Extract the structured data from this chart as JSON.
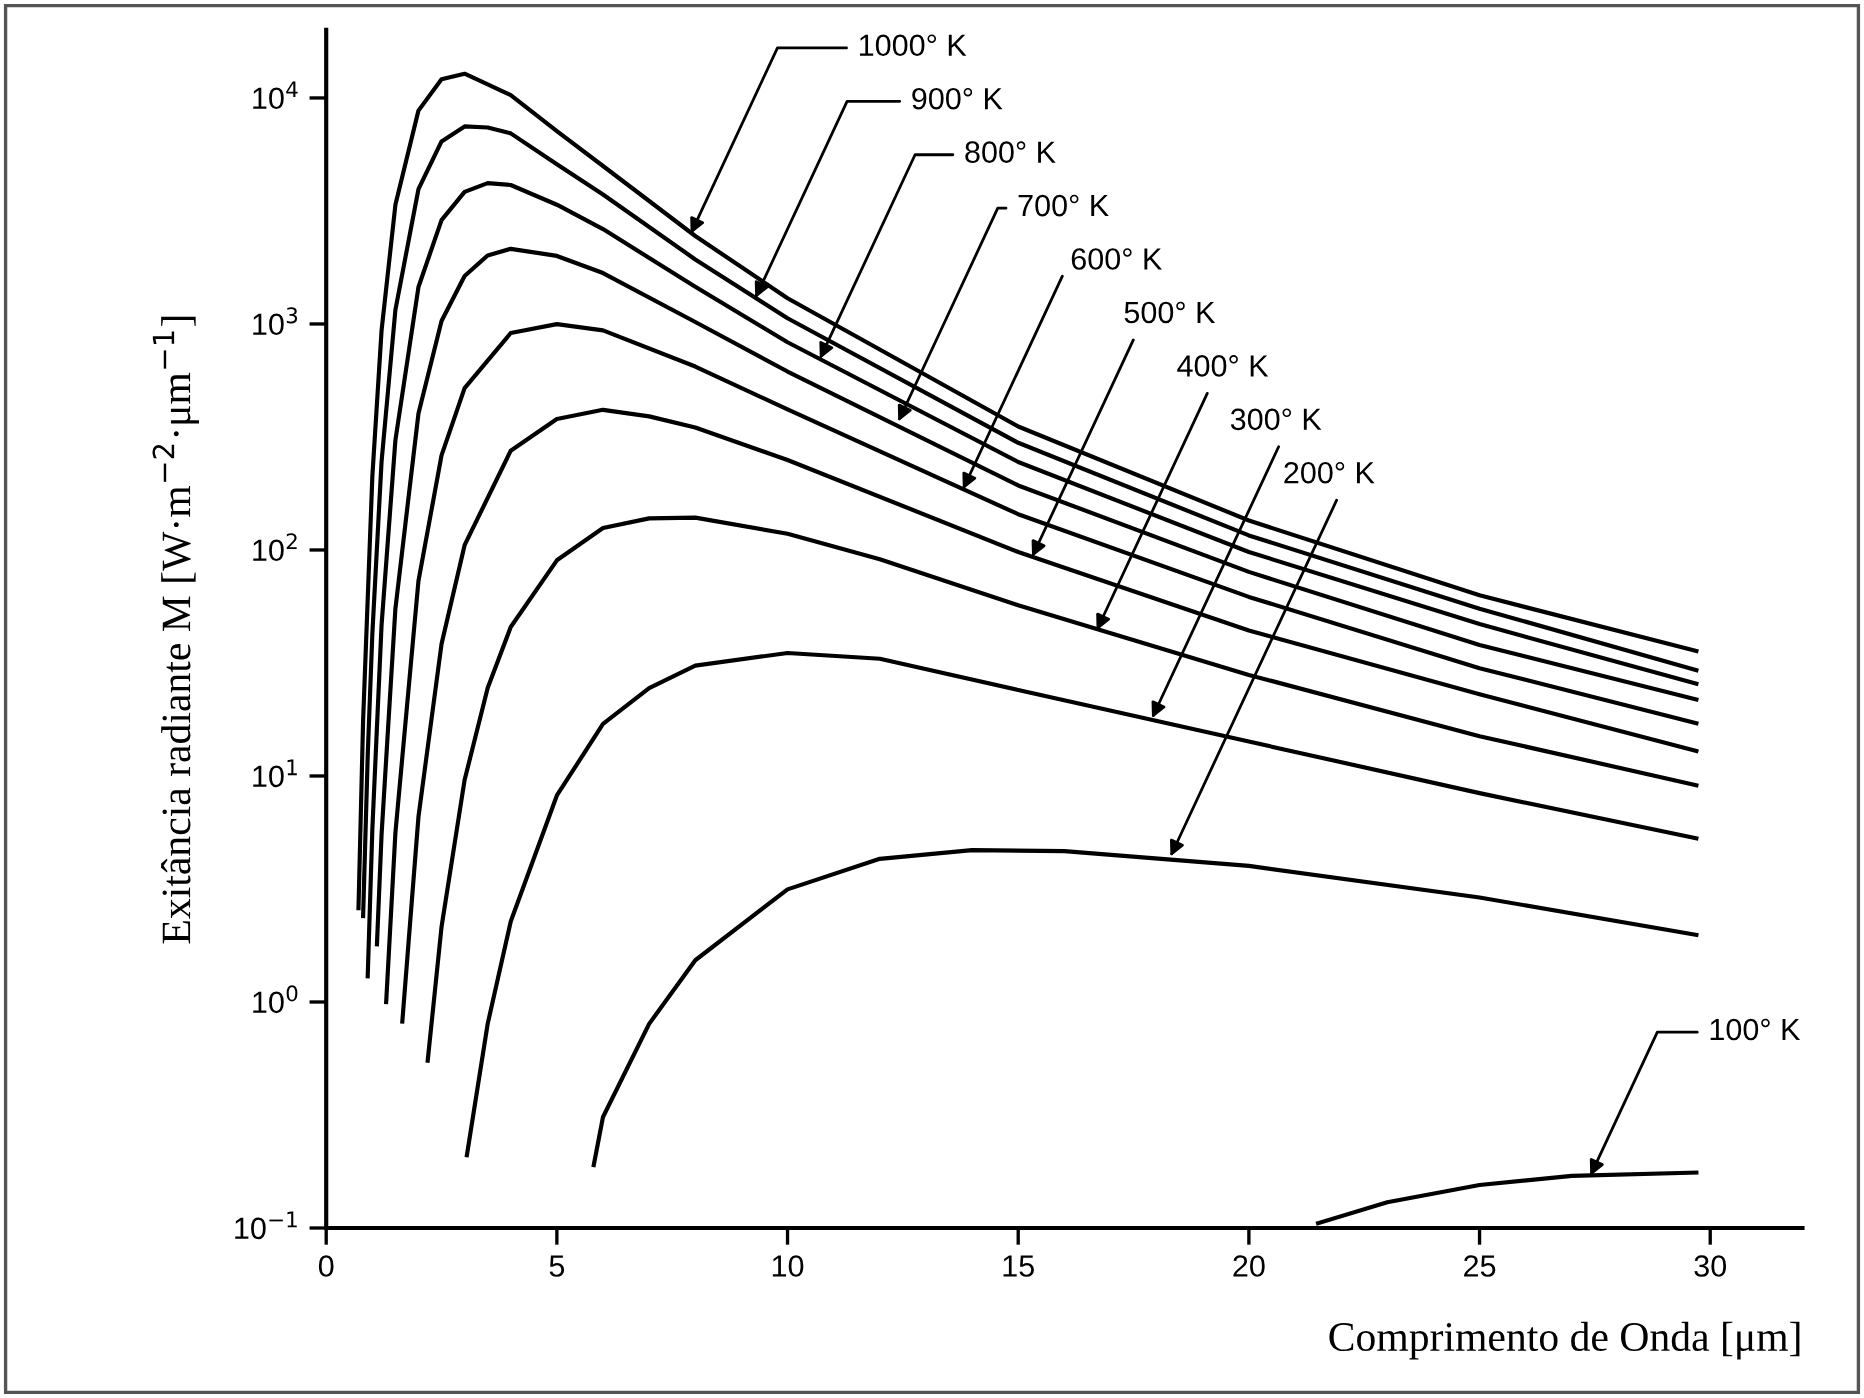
{
  "chart_data": {
    "type": "line",
    "xlabel": "Comprimento de Onda [μm]",
    "ylabel": "Exitância radiante M [W·m$^{−2}$·μm$^{−1}$]",
    "log": "y",
    "xlim": [
      0,
      32
    ],
    "ylim": [
      0.1,
      20000
    ],
    "xticks": [
      0,
      5,
      10,
      15,
      20,
      25,
      30
    ],
    "yticks": [
      {
        "value": 0.1,
        "label": "10$^{−1}$"
      },
      {
        "value": 1,
        "label": "10$^{0}$"
      },
      {
        "value": 10,
        "label": "10$^{1}$"
      },
      {
        "value": 100,
        "label": "10$^{2}$"
      },
      {
        "value": 1000,
        "label": "10$^{3}$"
      },
      {
        "value": 10000,
        "label": "10$^{4}$"
      }
    ],
    "series": [
      {
        "color": "#000000",
        "x": [
          0.7,
          0.8,
          1.0,
          1.2,
          1.5,
          2,
          2.5,
          3,
          4,
          5,
          6,
          8,
          10,
          15,
          20,
          25,
          29.7
        ],
        "values": [
          2.6,
          17.6,
          211,
          935,
          3365,
          8790,
          12100,
          12800,
          10300,
          7140,
          5000,
          2450,
          1300,
          352,
          135,
          63,
          35.7
        ]
      },
      {
        "color": "#000000",
        "x": [
          0.8,
          0.9,
          1.0,
          1.2,
          1.5,
          2,
          2.5,
          3,
          3.5,
          4,
          5,
          6,
          8,
          10,
          15,
          20,
          25,
          29.7
        ],
        "values": [
          2.4,
          12.3,
          42.5,
          246,
          1155,
          3950,
          6420,
          7480,
          7400,
          6970,
          5090,
          3740,
          1930,
          1060,
          298,
          116,
          55,
          29.4
        ]
      },
      {
        "color": "#000000",
        "x": [
          0.9,
          1.0,
          1.2,
          1.5,
          2,
          2.5,
          3,
          3.5,
          4,
          5,
          6,
          8,
          10,
          15,
          20,
          25,
          29.7
        ],
        "values": [
          1.3,
          5.8,
          46.5,
          306,
          1457,
          2880,
          3840,
          4200,
          4120,
          3370,
          2630,
          1460,
          830,
          245,
          98,
          47,
          25.6
        ]
      },
      {
        "color": "#000000",
        "x": [
          1.1,
          1.2,
          1.5,
          2,
          2.5,
          3,
          3.5,
          4,
          5,
          6,
          8,
          10,
          15,
          20,
          25,
          29.7
        ],
        "values": [
          1.8,
          5.5,
          55,
          402,
          1030,
          1630,
          2010,
          2150,
          2000,
          1680,
          1020,
          616,
          193,
          80,
          38,
          21.8
        ]
      },
      {
        "color": "#000000",
        "x": [
          1.3,
          1.5,
          2,
          2.5,
          3,
          4,
          5,
          6,
          8,
          10,
          15,
          20,
          25,
          29.7
        ],
        "values": [
          1.0,
          5.6,
          73,
          262,
          520,
          912,
          998,
          937,
          648,
          419,
          144,
          62,
          30,
          17.1
        ]
      },
      {
        "color": "#000000",
        "x": [
          1.65,
          2,
          2.5,
          3,
          4,
          5,
          6,
          7,
          8,
          10,
          15,
          20,
          25,
          29.7
        ],
        "values": [
          0.82,
          6.6,
          38.4,
          105,
          275,
          380,
          417,
          390,
          348,
          250,
          98,
          44,
          23,
          12.9
        ]
      },
      {
        "color": "#000000",
        "x": [
          2.2,
          2.5,
          3,
          3.5,
          4,
          5,
          6,
          7,
          8,
          10,
          12,
          15,
          20,
          25,
          29.7
        ],
        "values": [
          0.55,
          2.15,
          9.6,
          24.5,
          45.6,
          90,
          125,
          138,
          139,
          118,
          91,
          57,
          28,
          15,
          9.1
        ]
      },
      {
        "color": "#000000",
        "x": [
          3.05,
          3.5,
          4,
          5,
          6,
          7,
          8,
          10,
          12,
          15,
          20,
          25,
          29.7
        ],
        "values": [
          0.21,
          0.8,
          2.27,
          8.2,
          17,
          24.5,
          30.8,
          35,
          33,
          24,
          14.2,
          8.4,
          5.3
        ]
      },
      {
        "color": "#000000",
        "x": [
          5.8,
          6,
          7,
          8,
          10,
          12,
          14,
          16,
          20,
          25,
          29.7
        ],
        "values": [
          0.19,
          0.31,
          0.8,
          1.53,
          3.15,
          4.3,
          4.7,
          4.65,
          4.0,
          2.9,
          1.98
        ]
      },
      {
        "color": "#000000",
        "x": [
          21.5,
          23,
          25,
          27,
          29.7
        ],
        "values": [
          0.105,
          0.13,
          0.155,
          0.17,
          0.176
        ]
      }
    ],
    "annotations": [
      {
        "text": "1000° K",
        "x": 7.9,
        "y": 2500
      },
      {
        "text": "900° K",
        "x": 9.3,
        "y": 1300
      },
      {
        "text": "800° K",
        "x": 10.7,
        "y": 700
      },
      {
        "text": "700° K",
        "x": 12.4,
        "y": 370
      },
      {
        "text": "600° K",
        "x": 13.8,
        "y": 185
      },
      {
        "text": "500° K",
        "x": 15.3,
        "y": 93
      },
      {
        "text": "400° K",
        "x": 16.7,
        "y": 44
      },
      {
        "text": "300° K",
        "x": 17.9,
        "y": 18
      },
      {
        "text": "200° K",
        "x": 18.3,
        "y": 4.4
      },
      {
        "text": "100° K",
        "x": 27.4,
        "y": 0.17
      }
    ]
  }
}
